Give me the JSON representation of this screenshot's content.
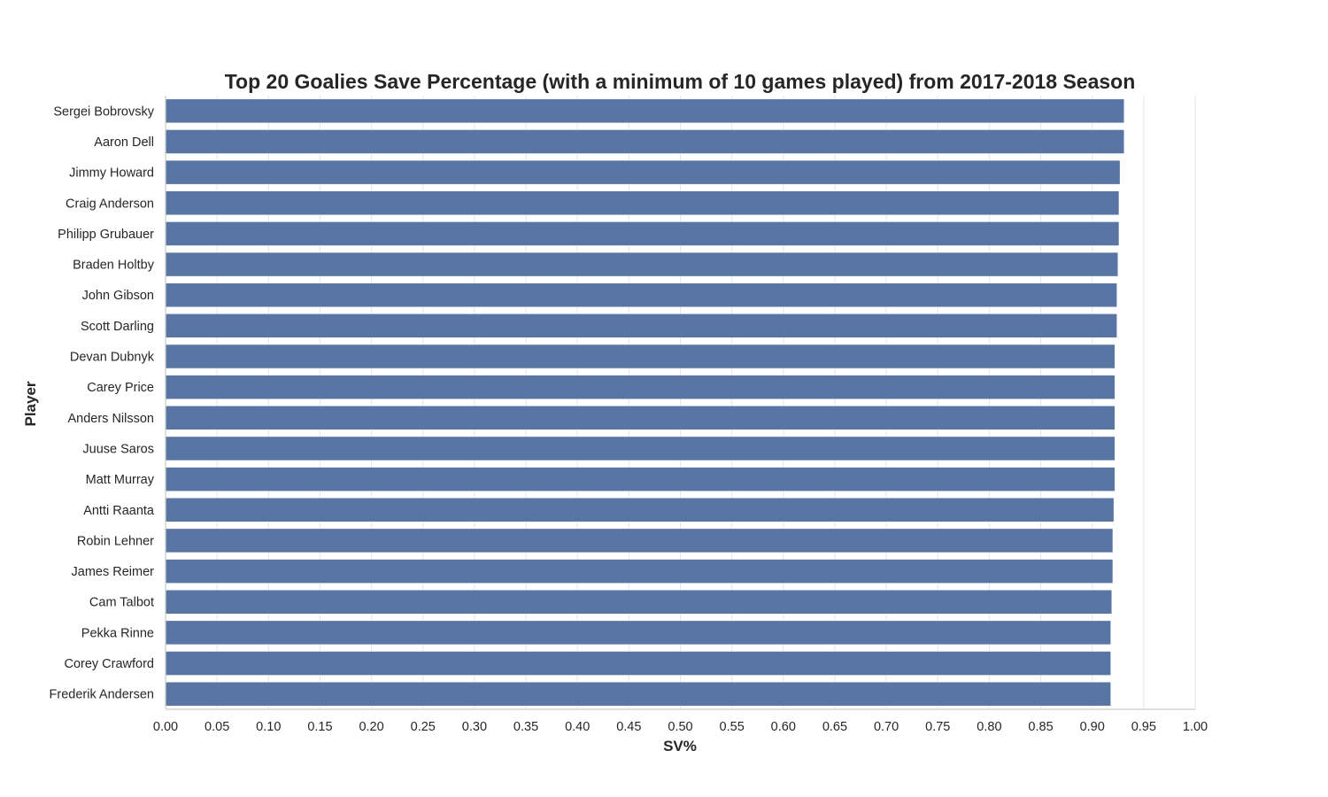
{
  "chart_data": {
    "type": "bar",
    "orientation": "horizontal",
    "title": "Top 20 Goalies Save Percentage (with a minimum of 10 games played) from 2017-2018 Season",
    "xlabel": "SV%",
    "ylabel": "Player",
    "xlim": [
      0,
      1
    ],
    "xticks": [
      "0.00",
      "0.05",
      "0.10",
      "0.15",
      "0.20",
      "0.25",
      "0.30",
      "0.35",
      "0.40",
      "0.45",
      "0.50",
      "0.55",
      "0.60",
      "0.65",
      "0.70",
      "0.75",
      "0.80",
      "0.85",
      "0.90",
      "0.95",
      "1.00"
    ],
    "grid": true,
    "bar_color": "#5975a4",
    "categories": [
      "Sergei Bobrovsky",
      "Aaron Dell",
      "Jimmy Howard",
      "Craig Anderson",
      "Philipp Grubauer",
      "Braden Holtby",
      "John Gibson",
      "Scott Darling",
      "Devan Dubnyk",
      "Carey Price",
      "Anders Nilsson",
      "Juuse Saros",
      "Matt Murray",
      "Antti Raanta",
      "Robin Lehner",
      "James Reimer",
      "Cam Talbot",
      "Pekka Rinne",
      "Corey Crawford",
      "Frederik Andersen"
    ],
    "values": [
      0.931,
      0.931,
      0.927,
      0.926,
      0.926,
      0.925,
      0.924,
      0.924,
      0.922,
      0.922,
      0.922,
      0.922,
      0.922,
      0.921,
      0.92,
      0.92,
      0.919,
      0.918,
      0.918,
      0.918
    ]
  }
}
